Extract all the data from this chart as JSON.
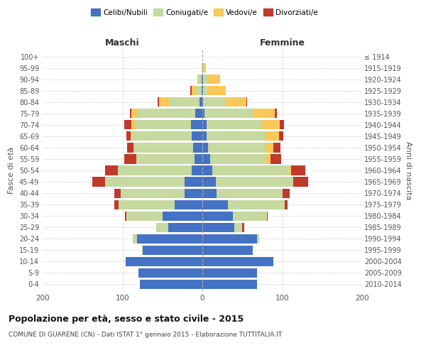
{
  "age_groups": [
    "0-4",
    "5-9",
    "10-14",
    "15-19",
    "20-24",
    "25-29",
    "30-34",
    "35-39",
    "40-44",
    "45-49",
    "50-54",
    "55-59",
    "60-64",
    "65-69",
    "70-74",
    "75-79",
    "80-84",
    "85-89",
    "90-94",
    "95-99",
    "100+"
  ],
  "birth_years": [
    "2010-2014",
    "2005-2009",
    "2000-2004",
    "1995-1999",
    "1990-1994",
    "1985-1989",
    "1980-1984",
    "1975-1979",
    "1970-1974",
    "1965-1969",
    "1960-1964",
    "1955-1959",
    "1950-1954",
    "1945-1949",
    "1940-1944",
    "1935-1939",
    "1930-1934",
    "1925-1929",
    "1920-1924",
    "1915-1919",
    "≤ 1914"
  ],
  "maschi": {
    "celibi": [
      78,
      80,
      96,
      75,
      82,
      43,
      50,
      35,
      22,
      22,
      13,
      10,
      12,
      13,
      14,
      9,
      4,
      1,
      1,
      0,
      0
    ],
    "coniugati": [
      0,
      0,
      0,
      1,
      5,
      15,
      45,
      70,
      80,
      100,
      93,
      73,
      73,
      75,
      70,
      72,
      38,
      8,
      4,
      1,
      0
    ],
    "vedovi": [
      0,
      0,
      0,
      0,
      0,
      0,
      0,
      0,
      0,
      0,
      0,
      0,
      1,
      2,
      5,
      8,
      12,
      4,
      1,
      0,
      0
    ],
    "divorziati": [
      0,
      0,
      0,
      0,
      0,
      0,
      2,
      5,
      8,
      16,
      16,
      15,
      8,
      5,
      9,
      2,
      2,
      2,
      0,
      0,
      0
    ]
  },
  "femmine": {
    "nubili": [
      68,
      68,
      89,
      63,
      68,
      40,
      38,
      32,
      18,
      17,
      12,
      10,
      7,
      5,
      5,
      3,
      1,
      1,
      1,
      0,
      0
    ],
    "coniugate": [
      0,
      0,
      0,
      0,
      3,
      10,
      43,
      71,
      82,
      97,
      97,
      70,
      72,
      73,
      70,
      60,
      28,
      6,
      5,
      1,
      0
    ],
    "vedove": [
      0,
      0,
      0,
      0,
      0,
      0,
      0,
      0,
      0,
      0,
      2,
      5,
      10,
      18,
      22,
      28,
      26,
      22,
      16,
      3,
      0
    ],
    "divorziate": [
      0,
      0,
      0,
      0,
      0,
      2,
      1,
      4,
      9,
      18,
      18,
      14,
      9,
      5,
      5,
      2,
      1,
      0,
      0,
      0,
      0
    ]
  },
  "colors": {
    "celibi": "#4472C4",
    "coniugati": "#C5D9A0",
    "vedovi": "#FAC858",
    "divorziati": "#C0392B"
  },
  "title": "Popolazione per età, sesso e stato civile - 2015",
  "subtitle": "COMUNE DI GUARENE (CN) - Dati ISTAT 1° gennaio 2015 - Elaborazione TUTTITALIA.IT",
  "ylabel_left": "Fasce di età",
  "ylabel_right": "Anni di nascita",
  "xlabel_maschi": "Maschi",
  "xlabel_femmine": "Femmine",
  "xlim": 200,
  "bg_color": "#ffffff",
  "grid_color": "#d0d0d0"
}
